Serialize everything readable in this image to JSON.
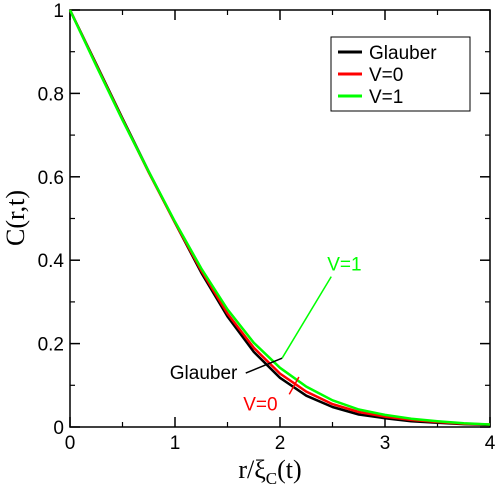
{
  "chart_data": {
    "type": "line",
    "xlim": [
      0,
      4
    ],
    "ylim": [
      0,
      1
    ],
    "x_ticks": [
      "0",
      "1",
      "2",
      "3",
      "4"
    ],
    "y_ticks": [
      "0",
      "0.2",
      "0.4",
      "0.6",
      "0.8",
      "1"
    ],
    "xlabel_main": "r/ξ",
    "xlabel_sub": "C",
    "xlabel_tail": "(t)",
    "ylabel": "C(r,t)",
    "grid": false,
    "legend_position": "top-right",
    "series": [
      {
        "name": "Glauber",
        "color": "#000000",
        "x": [
          0,
          0.25,
          0.5,
          0.75,
          1.0,
          1.25,
          1.5,
          1.75,
          2.0,
          2.25,
          2.5,
          2.75,
          3.0,
          3.25,
          3.5,
          3.75,
          4.0
        ],
        "y": [
          1.0,
          0.87,
          0.74,
          0.612,
          0.49,
          0.37,
          0.265,
          0.18,
          0.118,
          0.075,
          0.048,
          0.03,
          0.021,
          0.014,
          0.01,
          0.007,
          0.005
        ]
      },
      {
        "name": "V=0",
        "color": "#ff0000",
        "x": [
          0,
          0.25,
          0.5,
          0.75,
          1.0,
          1.25,
          1.5,
          1.75,
          2.0,
          2.25,
          2.5,
          2.75,
          3.0,
          3.25,
          3.5,
          3.75,
          4.0
        ],
        "y": [
          1.0,
          0.868,
          0.738,
          0.61,
          0.49,
          0.375,
          0.272,
          0.19,
          0.128,
          0.085,
          0.055,
          0.036,
          0.025,
          0.017,
          0.012,
          0.008,
          0.006
        ]
      },
      {
        "name": "V=1",
        "color": "#00ff00",
        "x": [
          0,
          0.25,
          0.5,
          0.75,
          1.0,
          1.25,
          1.5,
          1.75,
          2.0,
          2.25,
          2.5,
          2.75,
          3.0,
          3.25,
          3.5,
          3.75,
          4.0
        ],
        "y": [
          1.0,
          0.866,
          0.736,
          0.612,
          0.492,
          0.38,
          0.282,
          0.202,
          0.142,
          0.097,
          0.064,
          0.042,
          0.029,
          0.02,
          0.014,
          0.009,
          0.006
        ]
      }
    ],
    "annotations": [
      {
        "text": "V=1",
        "color": "#00ff00",
        "text_x": 2.45,
        "text_y": 0.375,
        "arrow_to_x": 2.02,
        "arrow_to_y": 0.165
      },
      {
        "text": "Glauber",
        "color": "#000000",
        "text_x": 0.95,
        "text_y": 0.115,
        "arrow_to_x": 2.02,
        "arrow_to_y": 0.165
      },
      {
        "text": "V=0",
        "color": "#ff0000",
        "text_x": 1.65,
        "text_y": 0.04,
        "arrow_to_x": 2.18,
        "arrow_to_y": 0.12
      }
    ]
  }
}
